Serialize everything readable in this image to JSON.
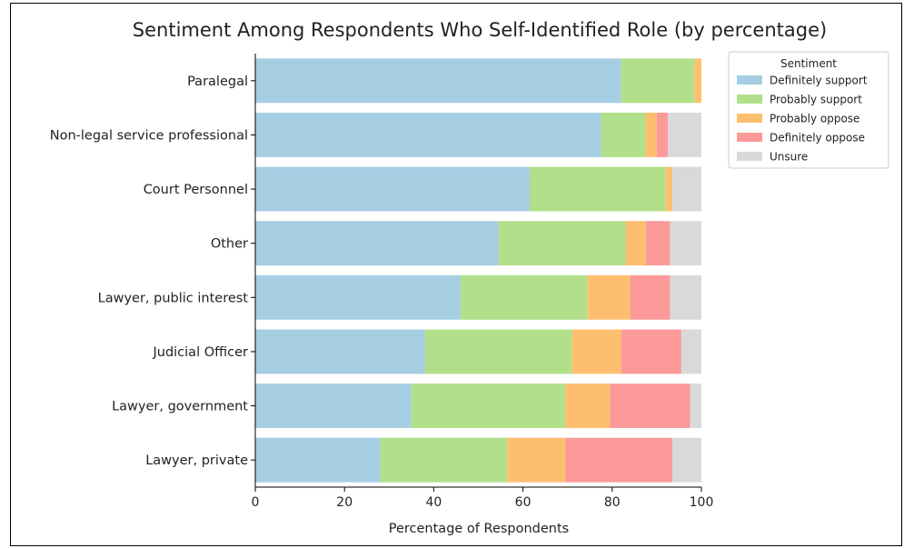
{
  "chart_data": {
    "type": "bar",
    "orientation": "horizontal",
    "stacked": true,
    "title": "Sentiment Among Respondents Who Self-Identified Role (by percentage)",
    "xlabel": "Percentage of Respondents",
    "ylabel": "",
    "xlim": [
      0,
      100
    ],
    "xticks": [
      0,
      20,
      40,
      60,
      80,
      100
    ],
    "grid": false,
    "legend_title": "Sentiment",
    "legend_position": "top-right",
    "categories": [
      "Paralegal",
      "Non-legal service professional",
      "Court Personnel",
      "Other",
      "Lawyer, public interest",
      "Judicial Officer",
      "Lawyer, government",
      "Lawyer, private"
    ],
    "series": [
      {
        "name": "Definitely support",
        "color": "#a6cee3",
        "values": [
          82,
          77.5,
          61.5,
          54.5,
          46,
          38,
          35,
          28
        ]
      },
      {
        "name": "Probably support",
        "color": "#b2df8a",
        "values": [
          16.5,
          10,
          30.5,
          28.5,
          28.5,
          33,
          34.5,
          28.5
        ]
      },
      {
        "name": "Probably oppose",
        "color": "#fdbf6f",
        "values": [
          1.5,
          2.5,
          1.5,
          4.5,
          9.5,
          11,
          10,
          13
        ]
      },
      {
        "name": "Definitely oppose",
        "color": "#fb9a99",
        "values": [
          0,
          2.5,
          0,
          5.5,
          9,
          13.5,
          18,
          24
        ]
      },
      {
        "name": "Unsure",
        "color": "#d9d9d9",
        "values": [
          0,
          7.5,
          6.5,
          7,
          7,
          4.5,
          2.5,
          6.5
        ]
      }
    ]
  }
}
